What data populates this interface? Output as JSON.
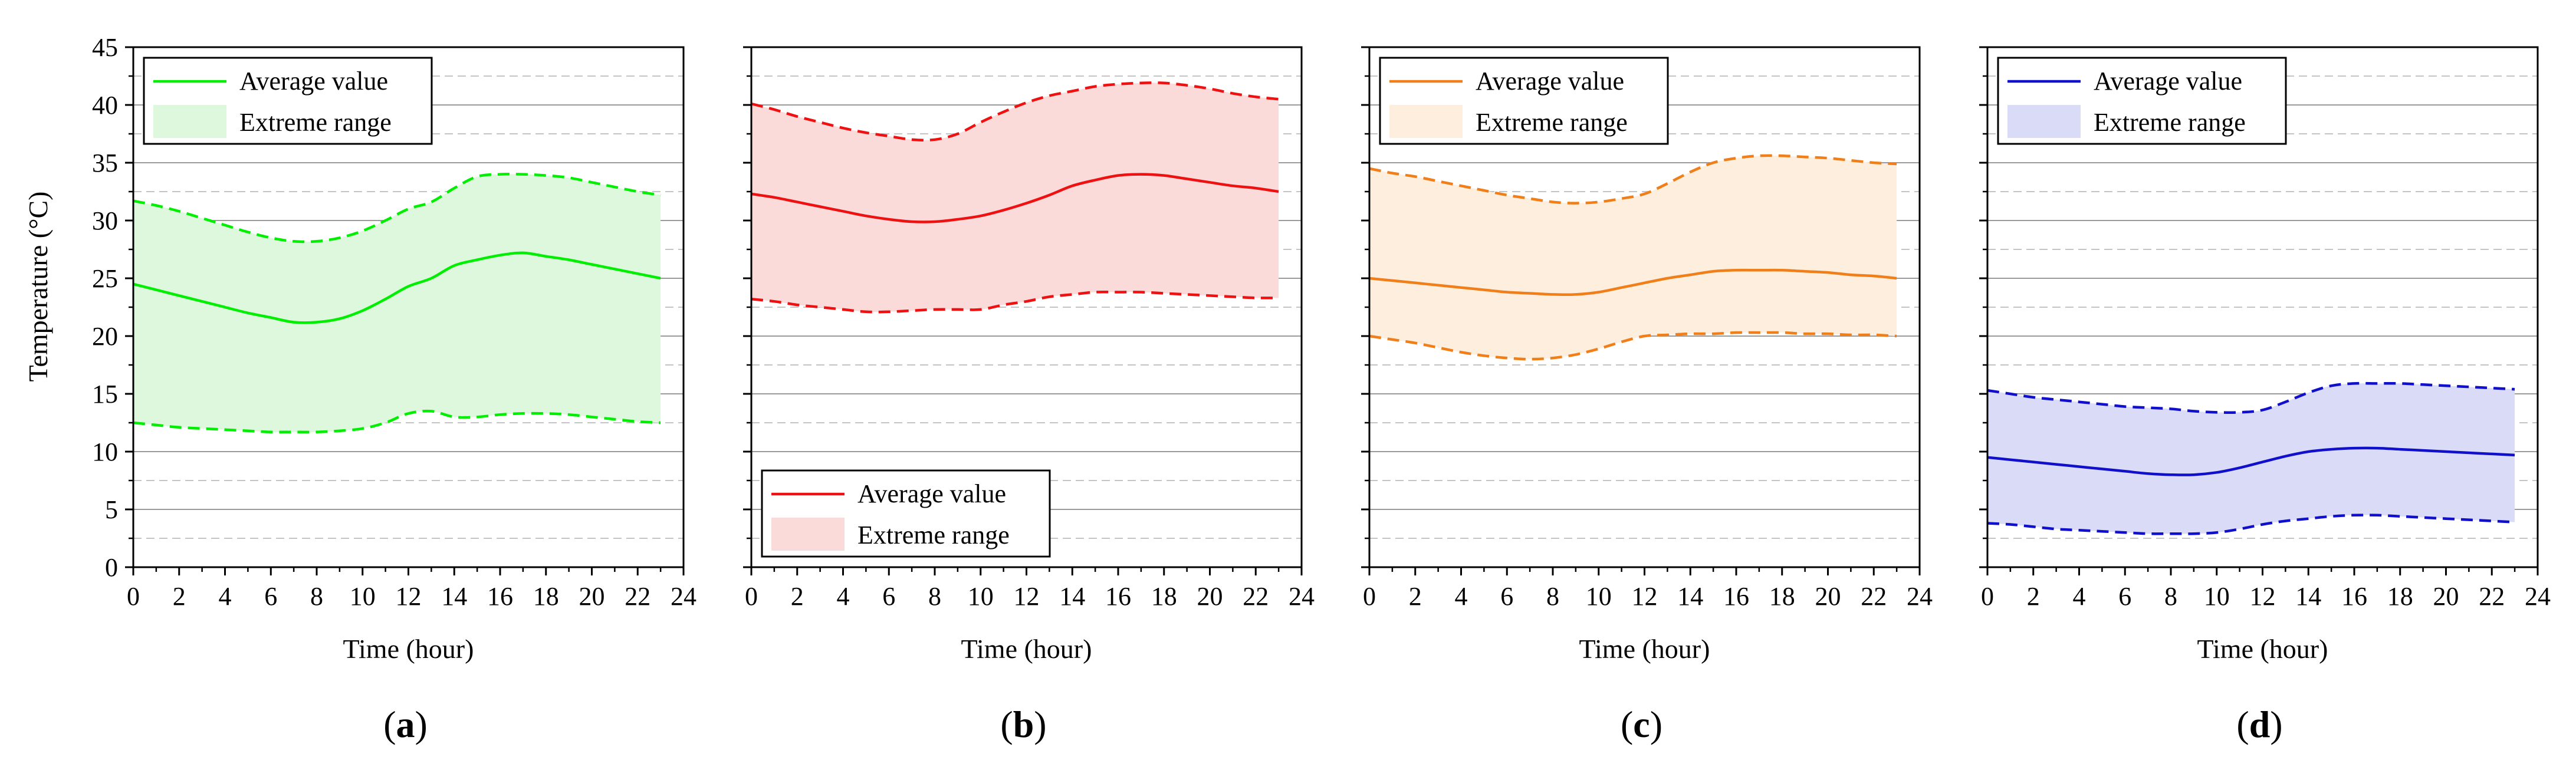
{
  "figure": {
    "y_axis_label": "Temperature (°C)"
  },
  "chart_data": [
    {
      "type": "line",
      "panel_label_letter": "a",
      "color": "#00ee00",
      "fill_color": "#ddf8dd",
      "xlabel": "Time (hour)",
      "ylabel": "Temperature (°C)",
      "xlim": [
        0,
        24
      ],
      "ylim": [
        0,
        45
      ],
      "x_ticks": [
        "0",
        "2",
        "4",
        "6",
        "8",
        "10",
        "12",
        "14",
        "16",
        "18",
        "20",
        "22",
        "24"
      ],
      "y_ticks": [
        "0",
        "5",
        "10",
        "15",
        "20",
        "25",
        "30",
        "35",
        "40",
        "45"
      ],
      "legend": {
        "position": "top-left",
        "entries": [
          "Average value",
          "Extreme range"
        ]
      },
      "x": [
        0,
        1,
        2,
        3,
        4,
        5,
        6,
        7,
        8,
        9,
        10,
        11,
        12,
        13,
        14,
        15,
        16,
        17,
        18,
        19,
        20,
        21,
        22,
        23
      ],
      "series": [
        {
          "name": "Average value",
          "style": "solid",
          "values": [
            24.5,
            24.0,
            23.5,
            23.0,
            22.5,
            22.0,
            21.6,
            21.2,
            21.2,
            21.5,
            22.2,
            23.2,
            24.3,
            25.0,
            26.1,
            26.6,
            27.0,
            27.2,
            26.9,
            26.6,
            26.2,
            25.8,
            25.4,
            25.0
          ]
        },
        {
          "name": "Extreme range upper",
          "style": "dashed",
          "values": [
            31.7,
            31.3,
            30.8,
            30.2,
            29.6,
            29.0,
            28.5,
            28.2,
            28.2,
            28.5,
            29.1,
            30.0,
            31.0,
            31.6,
            32.8,
            33.8,
            34.0,
            34.0,
            33.9,
            33.7,
            33.3,
            32.9,
            32.5,
            32.2
          ]
        },
        {
          "name": "Extreme range lower",
          "style": "dashed",
          "values": [
            12.5,
            12.3,
            12.1,
            12.0,
            11.9,
            11.8,
            11.7,
            11.7,
            11.7,
            11.8,
            12.0,
            12.5,
            13.3,
            13.5,
            13.0,
            13.0,
            13.2,
            13.3,
            13.3,
            13.2,
            13.0,
            12.8,
            12.6,
            12.5
          ]
        }
      ]
    },
    {
      "type": "line",
      "panel_label_letter": "b",
      "color": "#ee1111",
      "fill_color": "#fbdada",
      "xlabel": "Time (hour)",
      "xlim": [
        0,
        24
      ],
      "ylim": [
        0,
        45
      ],
      "x_ticks": [
        "0",
        "2",
        "4",
        "6",
        "8",
        "10",
        "12",
        "14",
        "16",
        "18",
        "20",
        "22",
        "24"
      ],
      "legend": {
        "position": "bottom-left",
        "entries": [
          "Average value",
          "Extreme range"
        ]
      },
      "x": [
        0,
        1,
        2,
        3,
        4,
        5,
        6,
        7,
        8,
        9,
        10,
        11,
        12,
        13,
        14,
        15,
        16,
        17,
        18,
        19,
        20,
        21,
        22,
        23
      ],
      "series": [
        {
          "name": "Average value",
          "style": "solid",
          "values": [
            32.3,
            32.0,
            31.6,
            31.2,
            30.8,
            30.4,
            30.1,
            29.9,
            29.9,
            30.1,
            30.4,
            30.9,
            31.5,
            32.2,
            33.0,
            33.5,
            33.9,
            34.0,
            33.9,
            33.6,
            33.3,
            33.0,
            32.8,
            32.5
          ]
        },
        {
          "name": "Extreme range upper",
          "style": "dashed",
          "values": [
            40.1,
            39.6,
            39.0,
            38.5,
            38.0,
            37.6,
            37.3,
            37.0,
            37.0,
            37.5,
            38.5,
            39.4,
            40.2,
            40.8,
            41.2,
            41.6,
            41.8,
            41.9,
            41.9,
            41.7,
            41.4,
            41.0,
            40.7,
            40.5
          ]
        },
        {
          "name": "Extreme range lower",
          "style": "dashed",
          "values": [
            23.2,
            23.0,
            22.7,
            22.5,
            22.3,
            22.1,
            22.1,
            22.2,
            22.3,
            22.3,
            22.3,
            22.7,
            23.0,
            23.4,
            23.6,
            23.8,
            23.8,
            23.8,
            23.7,
            23.6,
            23.5,
            23.4,
            23.3,
            23.3
          ]
        }
      ]
    },
    {
      "type": "line",
      "panel_label_letter": "c",
      "color": "#f07f1a",
      "fill_color": "#fdeedd",
      "xlabel": "Time (hour)",
      "xlim": [
        0,
        24
      ],
      "ylim": [
        0,
        45
      ],
      "x_ticks": [
        "0",
        "2",
        "4",
        "6",
        "8",
        "10",
        "12",
        "14",
        "16",
        "18",
        "20",
        "22",
        "24"
      ],
      "legend": {
        "position": "top-left",
        "entries": [
          "Average value",
          "Extreme range"
        ]
      },
      "x": [
        0,
        1,
        2,
        3,
        4,
        5,
        6,
        7,
        8,
        9,
        10,
        11,
        12,
        13,
        14,
        15,
        16,
        17,
        18,
        19,
        20,
        21,
        22,
        23
      ],
      "series": [
        {
          "name": "Average value",
          "style": "solid",
          "values": [
            25.0,
            24.8,
            24.6,
            24.4,
            24.2,
            24.0,
            23.8,
            23.7,
            23.6,
            23.6,
            23.8,
            24.2,
            24.6,
            25.0,
            25.3,
            25.6,
            25.7,
            25.7,
            25.7,
            25.6,
            25.5,
            25.3,
            25.2,
            25.0
          ]
        },
        {
          "name": "Extreme range upper",
          "style": "dashed",
          "values": [
            34.5,
            34.1,
            33.8,
            33.4,
            33.0,
            32.6,
            32.2,
            31.9,
            31.6,
            31.5,
            31.6,
            31.9,
            32.3,
            33.2,
            34.2,
            35.0,
            35.4,
            35.6,
            35.6,
            35.5,
            35.4,
            35.2,
            35.0,
            34.9
          ]
        },
        {
          "name": "Extreme range lower",
          "style": "dashed",
          "values": [
            20.0,
            19.7,
            19.4,
            19.0,
            18.6,
            18.3,
            18.1,
            18.0,
            18.1,
            18.4,
            18.9,
            19.5,
            20.0,
            20.1,
            20.2,
            20.2,
            20.3,
            20.3,
            20.3,
            20.2,
            20.2,
            20.1,
            20.1,
            20.0
          ]
        }
      ]
    },
    {
      "type": "line",
      "panel_label_letter": "d",
      "color": "#1010cc",
      "fill_color": "#dadcf7",
      "xlabel": "Time (hour)",
      "xlim": [
        0,
        24
      ],
      "ylim": [
        0,
        45
      ],
      "x_ticks": [
        "0",
        "2",
        "4",
        "6",
        "8",
        "10",
        "12",
        "14",
        "16",
        "18",
        "20",
        "22",
        "24"
      ],
      "legend": {
        "position": "top-left",
        "entries": [
          "Average value",
          "Extreme range"
        ]
      },
      "x": [
        0,
        1,
        2,
        3,
        4,
        5,
        6,
        7,
        8,
        9,
        10,
        11,
        12,
        13,
        14,
        15,
        16,
        17,
        18,
        19,
        20,
        21,
        22,
        23
      ],
      "series": [
        {
          "name": "Average value",
          "style": "solid",
          "values": [
            9.5,
            9.3,
            9.1,
            8.9,
            8.7,
            8.5,
            8.3,
            8.1,
            8.0,
            8.0,
            8.2,
            8.6,
            9.1,
            9.6,
            10.0,
            10.2,
            10.3,
            10.3,
            10.2,
            10.1,
            10.0,
            9.9,
            9.8,
            9.7
          ]
        },
        {
          "name": "Extreme range upper",
          "style": "dashed",
          "values": [
            15.3,
            15.0,
            14.7,
            14.5,
            14.3,
            14.1,
            13.9,
            13.8,
            13.7,
            13.5,
            13.4,
            13.4,
            13.6,
            14.3,
            15.1,
            15.7,
            15.9,
            15.9,
            15.9,
            15.8,
            15.7,
            15.6,
            15.5,
            15.4
          ]
        },
        {
          "name": "Extreme range lower",
          "style": "dashed",
          "values": [
            3.8,
            3.7,
            3.5,
            3.3,
            3.2,
            3.1,
            3.0,
            2.9,
            2.9,
            2.9,
            3.0,
            3.3,
            3.7,
            4.0,
            4.2,
            4.4,
            4.5,
            4.5,
            4.4,
            4.3,
            4.2,
            4.1,
            4.0,
            3.9
          ]
        }
      ]
    }
  ]
}
